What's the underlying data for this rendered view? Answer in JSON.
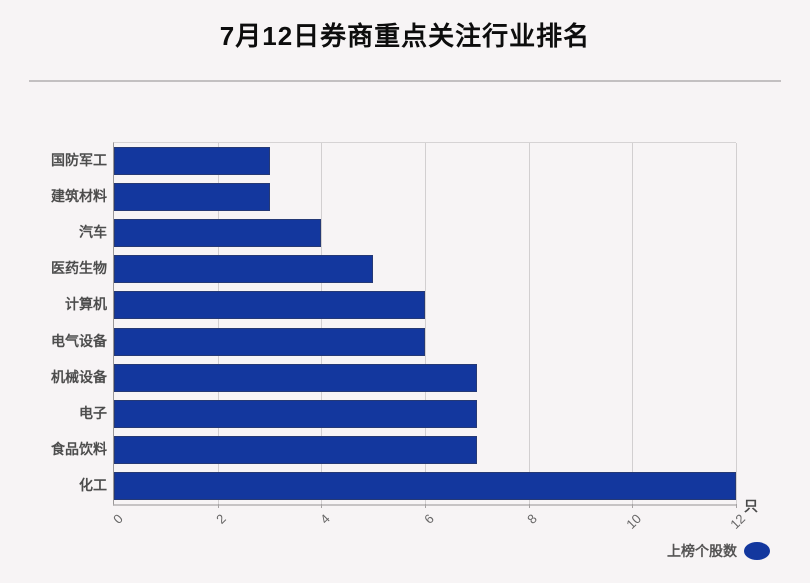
{
  "title": "7月12日券商重点关注行业排名",
  "colors": {
    "bar": "#13379E",
    "background": "#f7f4f5",
    "grid": "#d2cfd0"
  },
  "legend": {
    "label": "上榜个股数"
  },
  "chart_data": {
    "type": "bar",
    "orientation": "horizontal",
    "title": "7月12日券商重点关注行业排名",
    "categories": [
      "国防军工",
      "建筑材料",
      "汽车",
      "医药生物",
      "计算机",
      "电气设备",
      "机械设备",
      "电子",
      "食品饮料",
      "化工"
    ],
    "values": [
      3,
      3,
      4,
      5,
      6,
      6,
      7,
      7,
      7,
      12
    ],
    "series_name": "上榜个股数",
    "unit": "只",
    "xlim": [
      0,
      12
    ],
    "xticks": [
      0,
      2,
      4,
      6,
      8,
      10,
      12
    ],
    "grid": "vertical-only",
    "legend_position": "bottom-right",
    "bar_color": "#13379E"
  }
}
